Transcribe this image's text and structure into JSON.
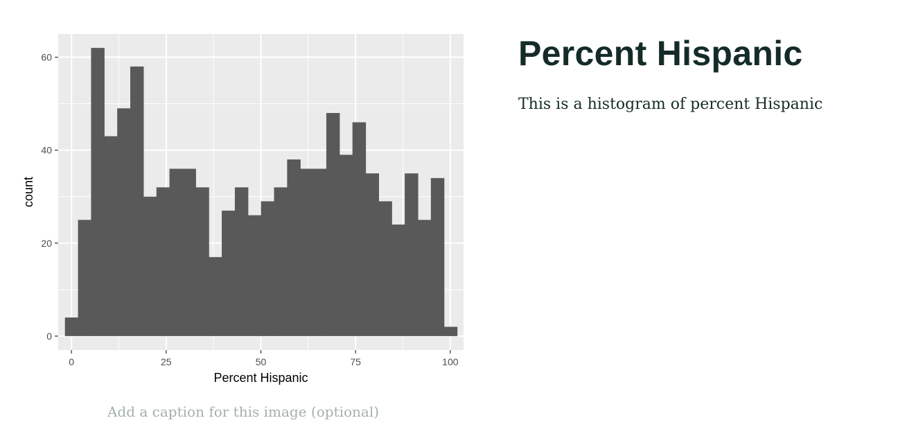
{
  "heading": "Percent Hispanic",
  "description": "This is a histogram of percent Hispanic",
  "caption_placeholder": "Add a caption for this image (optional)",
  "chart_data": {
    "type": "bar",
    "title": "",
    "xlabel": "Percent Hispanic",
    "ylabel": "count",
    "xlim": [
      -3.5,
      103.5
    ],
    "ylim": [
      -3,
      65
    ],
    "x_ticks": [
      0,
      25,
      50,
      75,
      100
    ],
    "y_ticks": [
      0,
      20,
      40,
      60
    ],
    "bin_width": 3.45,
    "bin_start": -1.725,
    "values": [
      4,
      25,
      62,
      43,
      49,
      58,
      30,
      32,
      36,
      36,
      32,
      17,
      27,
      32,
      26,
      29,
      32,
      38,
      36,
      36,
      48,
      39,
      46,
      35,
      29,
      24,
      35,
      25,
      34,
      2
    ],
    "grid": true,
    "colors": {
      "panel": "#ebebeb",
      "grid": "#ffffff",
      "bar": "#595959",
      "tick_text": "#4d4d4d",
      "axis_title": "#000000"
    }
  }
}
